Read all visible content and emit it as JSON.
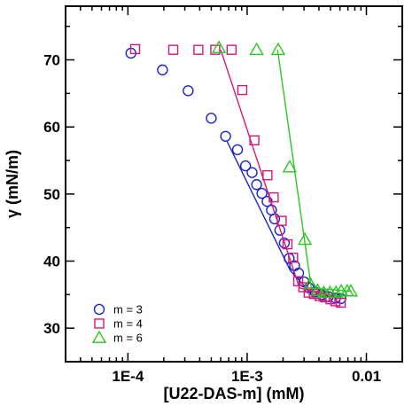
{
  "chart_data": {
    "type": "scatter",
    "title": "",
    "xlabel": "[U22-DAS-m] (mM)",
    "ylabel": "γ (mN/m)",
    "xscale": "log",
    "xlim": [
      3e-05,
      0.02
    ],
    "ylim": [
      25,
      78
    ],
    "x_ticks": [
      {
        "value": 0.0001,
        "label": "1E-4"
      },
      {
        "value": 0.001,
        "label": "1E-3"
      },
      {
        "value": 0.01,
        "label": "0.01"
      }
    ],
    "y_ticks": [
      {
        "value": 30,
        "label": "30"
      },
      {
        "value": 40,
        "label": "40"
      },
      {
        "value": 50,
        "label": "50"
      },
      {
        "value": 60,
        "label": "60"
      },
      {
        "value": 70,
        "label": "70"
      }
    ],
    "grid": false,
    "legend_position": "bottom-left",
    "series": [
      {
        "name": "m = 3",
        "marker": "circle",
        "color": "#1f24c8",
        "points": [
          [
            0.000106,
            71.0
          ],
          [
            0.000195,
            68.5
          ],
          [
            0.00032,
            65.4
          ],
          [
            0.0005,
            61.3
          ],
          [
            0.00066,
            58.6
          ],
          [
            0.00083,
            56.6
          ],
          [
            0.00097,
            54.2
          ],
          [
            0.0011,
            53.2
          ],
          [
            0.0012,
            51.4
          ],
          [
            0.00133,
            50.1
          ],
          [
            0.00147,
            48.9
          ],
          [
            0.0016,
            47.6
          ],
          [
            0.0017,
            46.3
          ],
          [
            0.00188,
            44.6
          ],
          [
            0.00205,
            42.7
          ],
          [
            0.00225,
            40.4
          ],
          [
            0.0025,
            39.3
          ],
          [
            0.0027,
            38.2
          ],
          [
            0.003,
            36.9
          ],
          [
            0.0033,
            36.0
          ],
          [
            0.0037,
            35.4
          ],
          [
            0.0042,
            35.0
          ],
          [
            0.0048,
            34.7
          ],
          [
            0.0055,
            34.5
          ],
          [
            0.0061,
            34.4
          ]
        ],
        "fit_lines": [
          [
            [
              0.00068,
              57.8
            ],
            [
              0.0023,
              38.6
            ],
            [
              0.0035,
              35.0
            ],
            [
              0.0062,
              34.5
            ]
          ]
        ]
      },
      {
        "name": "m = 4",
        "marker": "square",
        "color": "#d4187a",
        "points": [
          [
            0.000115,
            71.6
          ],
          [
            0.00024,
            71.5
          ],
          [
            0.00039,
            71.5
          ],
          [
            0.00054,
            71.5
          ],
          [
            0.00074,
            71.5
          ],
          [
            0.00091,
            65.5
          ],
          [
            0.00115,
            58.0
          ],
          [
            0.00148,
            52.8
          ],
          [
            0.00167,
            49.5
          ],
          [
            0.00195,
            46.0
          ],
          [
            0.00218,
            42.5
          ],
          [
            0.00243,
            40.5
          ],
          [
            0.00268,
            37.0
          ],
          [
            0.00296,
            36.1
          ],
          [
            0.00328,
            35.3
          ],
          [
            0.00362,
            35.1
          ],
          [
            0.00405,
            34.8
          ],
          [
            0.00447,
            34.6
          ],
          [
            0.005,
            34.3
          ],
          [
            0.0055,
            34.0
          ],
          [
            0.0061,
            33.8
          ]
        ],
        "fit_lines": [
          [
            [
              0.0006,
              71.5
            ],
            [
              0.00275,
              36.0
            ],
            [
              0.0062,
              34.4
            ]
          ]
        ]
      },
      {
        "name": "m = 6",
        "marker": "triangle",
        "color": "#28c81e",
        "points": [
          [
            0.00058,
            71.8
          ],
          [
            0.0012,
            71.5
          ],
          [
            0.00182,
            71.5
          ],
          [
            0.00227,
            54.0
          ],
          [
            0.00305,
            43.2
          ],
          [
            0.00338,
            36.6
          ],
          [
            0.0039,
            35.6
          ],
          [
            0.0044,
            35.3
          ],
          [
            0.00495,
            35.3
          ],
          [
            0.00555,
            35.3
          ],
          [
            0.00615,
            35.5
          ],
          [
            0.0069,
            35.5
          ],
          [
            0.0074,
            35.5
          ]
        ],
        "fit_lines": [
          [
            [
              0.0018,
              71.5
            ],
            [
              0.00345,
              36.0
            ],
            [
              0.0075,
              35.5
            ]
          ]
        ]
      }
    ]
  }
}
